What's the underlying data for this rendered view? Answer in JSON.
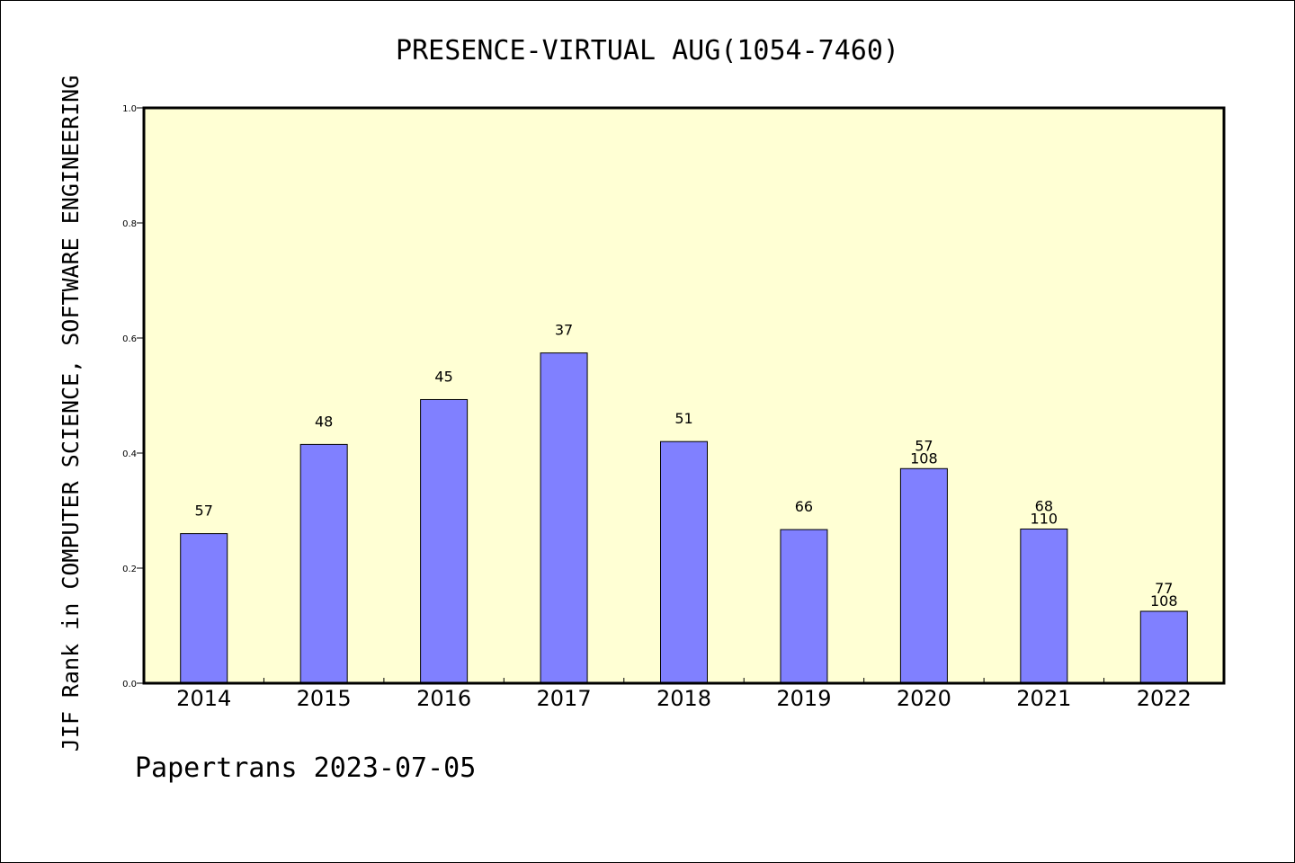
{
  "chart_data": {
    "type": "bar",
    "title": "PRESENCE-VIRTUAL AUG(1054-7460)",
    "ylabel": "JIF Rank in COMPUTER SCIENCE, SOFTWARE ENGINEERING",
    "xlabel": "",
    "ylim": [
      0,
      1.0
    ],
    "yticks": [
      "0.0",
      "0.2",
      "0.4",
      "0.6",
      "0.8",
      "1.0"
    ],
    "categories": [
      "2014",
      "2015",
      "2016",
      "2017",
      "2018",
      "2019",
      "2020",
      "2021",
      "2022"
    ],
    "values": [
      0.26,
      0.415,
      0.493,
      0.574,
      0.42,
      0.267,
      0.373,
      0.268,
      0.125
    ],
    "labels": [
      [
        "57"
      ],
      [
        "48"
      ],
      [
        "45"
      ],
      [
        "37"
      ],
      [
        "51"
      ],
      [
        "66"
      ],
      [
        "57",
        "108"
      ],
      [
        "68",
        "110"
      ],
      [
        "77",
        "108"
      ]
    ],
    "colors": {
      "plot_bg": "#FFFFD4",
      "bar": "#8080FF",
      "bar_edge": "#000000"
    },
    "grid": false,
    "footer": "Papertrans 2023-07-05"
  }
}
